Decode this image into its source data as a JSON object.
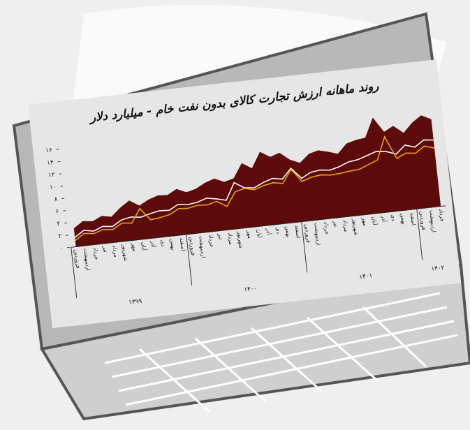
{
  "chart_data": {
    "type": "line",
    "title": "روند ماهانه ارزش تجارت کالای بدون نفت خام - میلیارد دلار",
    "categories": [
      "فروردین",
      "اردیبهشت",
      "خرداد",
      "تیر",
      "مرداد",
      "شهریور",
      "مهر",
      "آبان",
      "آذر",
      "دی",
      "بهمن",
      "اسفند",
      "فروردین",
      "اردیبهشت",
      "خرداد",
      "تیر",
      "مرداد",
      "شهریور",
      "مهر",
      "آبان",
      "آذر",
      "دی",
      "بهمن",
      "اسفند",
      "فروردین",
      "اردیبهشت",
      "خرداد",
      "تیر",
      "مرداد",
      "شهریور",
      "مهر",
      "آبان",
      "آذر",
      "دی",
      "بهمن",
      "اسفند",
      "فروردین",
      "اردیبهشت",
      "خرداد"
    ],
    "year_labels": [
      "۱۳۹۹",
      "۱۴۰۰",
      "۱۴۰۱",
      "۱۴۰۲"
    ],
    "series": [
      {
        "color": "#5c0a0a",
        "style": "area",
        "values": [
          3,
          4,
          3.8,
          4.5,
          4.2,
          5.5,
          6.5,
          5.5,
          6.3,
          6.8,
          6.7,
          7.5,
          6.8,
          7.2,
          8,
          8.5,
          7.8,
          8.2,
          10.5,
          9.5,
          12,
          11,
          11.5,
          10.2,
          9.5,
          10.8,
          11.2,
          10.8,
          10.3,
          11.8,
          12.2,
          12.4,
          15.5,
          13,
          13.8,
          12.5,
          14,
          15,
          14.2
        ]
      },
      {
        "color": "#ffffff",
        "style": "line",
        "values": [
          1.5,
          2.5,
          2.2,
          2.8,
          2.6,
          3.5,
          3.8,
          3.6,
          4,
          4.3,
          4.2,
          5,
          4.8,
          5,
          5.5,
          5.2,
          4.8,
          7.5,
          6.5,
          6.3,
          7,
          7.5,
          7.2,
          8.8,
          7,
          7.8,
          8,
          7.8,
          8.2,
          8.8,
          9,
          9.5,
          10,
          9.8,
          9.2,
          10.5,
          10,
          11,
          10.8
        ]
      },
      {
        "color": "#f0a500",
        "style": "line",
        "values": [
          1,
          2,
          1.8,
          2.3,
          2.1,
          3,
          2.8,
          5,
          3,
          3.2,
          3.5,
          4.3,
          4.2,
          4.5,
          4.4,
          4.8,
          3.8,
          6,
          6.4,
          6,
          6.5,
          6.8,
          6.5,
          8.6,
          6.5,
          7,
          7.2,
          7,
          7.1,
          7.3,
          7.4,
          8,
          8.6,
          12.2,
          8.5,
          9.2,
          9,
          10,
          9.5
        ]
      }
    ],
    "ylim": [
      0,
      16
    ],
    "yticks": [
      {
        "value": 0,
        "label": "۰"
      },
      {
        "value": 2,
        "label": "۲"
      },
      {
        "value": 4,
        "label": "۴"
      },
      {
        "value": 6,
        "label": "۶"
      },
      {
        "value": 8,
        "label": "۸"
      },
      {
        "value": 10,
        "label": "۱۰"
      },
      {
        "value": 12,
        "label": "۱۲"
      },
      {
        "value": 14,
        "label": "۱۴"
      },
      {
        "value": 16,
        "label": "۱۶"
      }
    ]
  }
}
